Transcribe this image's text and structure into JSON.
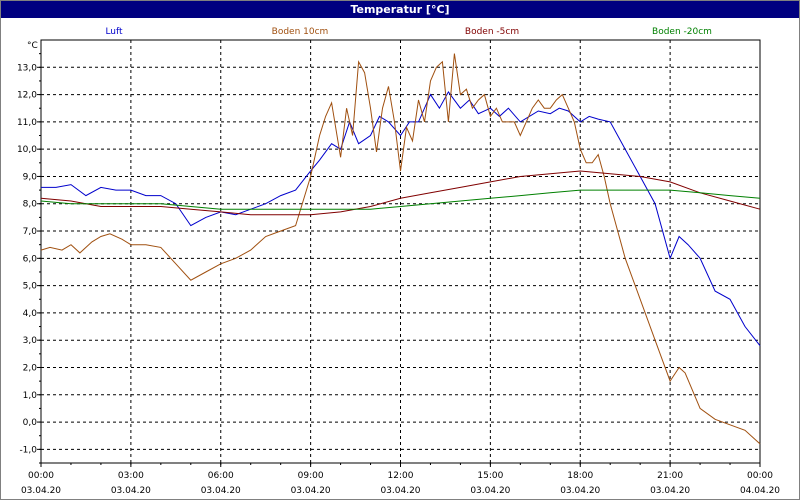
{
  "chart_data": {
    "type": "line",
    "title": "Temperatur [°C]",
    "ylabel": "°C",
    "ylim": [
      -1.5,
      14.0
    ],
    "yticks": [
      -1.0,
      0.0,
      1.0,
      2.0,
      3.0,
      4.0,
      5.0,
      6.0,
      7.0,
      8.0,
      9.0,
      10.0,
      11.0,
      12.0,
      13.0
    ],
    "ytick_labels": [
      "-1,0",
      "0,0",
      "1,0",
      "2,0",
      "3,0",
      "4,0",
      "5,0",
      "6,0",
      "7,0",
      "8,0",
      "9,0",
      "10,0",
      "11,0",
      "12,0",
      "13,0"
    ],
    "xlim": [
      0,
      24
    ],
    "xticks": [
      0,
      3,
      6,
      9,
      12,
      15,
      18,
      21,
      24
    ],
    "xtick_times": [
      "00:00",
      "03:00",
      "06:00",
      "09:00",
      "12:00",
      "15:00",
      "18:00",
      "21:00",
      "00:00"
    ],
    "xtick_dates": [
      "03.04.20",
      "03.04.20",
      "03.04.20",
      "03.04.20",
      "03.04.20",
      "03.04.20",
      "03.04.20",
      "03.04.20",
      "04.04.20"
    ],
    "grid": true,
    "legend_position": "top",
    "series": [
      {
        "name": "Luft",
        "color": "#0000cc",
        "x": [
          0,
          0.5,
          1,
          1.5,
          2,
          2.5,
          3,
          3.5,
          4,
          4.5,
          5,
          5.5,
          6,
          6.5,
          7,
          7.5,
          8,
          8.5,
          9,
          9.3,
          9.7,
          10,
          10.3,
          10.6,
          11,
          11.3,
          11.6,
          12,
          12.3,
          12.6,
          13,
          13.3,
          13.6,
          14,
          14.3,
          14.6,
          15,
          15.3,
          15.6,
          16,
          16.3,
          16.6,
          17,
          17.3,
          17.6,
          18,
          18.3,
          18.6,
          19,
          19.5,
          20,
          20.5,
          21,
          21.3,
          21.6,
          22,
          22.5,
          23,
          23.5,
          24
        ],
        "y": [
          8.6,
          8.6,
          8.7,
          8.3,
          8.6,
          8.5,
          8.5,
          8.3,
          8.3,
          8.0,
          7.2,
          7.5,
          7.7,
          7.6,
          7.8,
          8.0,
          8.3,
          8.5,
          9.2,
          9.6,
          10.2,
          10.0,
          11.0,
          10.2,
          10.5,
          11.2,
          11.0,
          10.5,
          11.0,
          11.0,
          12.0,
          11.5,
          12.1,
          11.5,
          11.8,
          11.3,
          11.5,
          11.2,
          11.5,
          11.0,
          11.2,
          11.4,
          11.3,
          11.5,
          11.4,
          11.0,
          11.2,
          11.1,
          11.0,
          10.0,
          9.0,
          8.0,
          6.0,
          6.8,
          6.5,
          6.0,
          4.8,
          4.5,
          3.5,
          2.8
        ]
      },
      {
        "name": "Boden 10cm",
        "color": "#a05010",
        "x": [
          0,
          0.3,
          0.7,
          1,
          1.3,
          1.7,
          2,
          2.3,
          2.7,
          3,
          3.5,
          4,
          4.5,
          5,
          5.5,
          6,
          6.5,
          7,
          7.5,
          8,
          8.5,
          9,
          9.3,
          9.5,
          9.7,
          10,
          10.2,
          10.4,
          10.6,
          10.8,
          11,
          11.2,
          11.4,
          11.6,
          11.8,
          12,
          12.2,
          12.4,
          12.6,
          12.8,
          13,
          13.2,
          13.4,
          13.6,
          13.8,
          14,
          14.2,
          14.4,
          14.6,
          14.8,
          15,
          15.2,
          15.4,
          15.6,
          15.8,
          16,
          16.2,
          16.4,
          16.6,
          16.8,
          17,
          17.2,
          17.4,
          17.6,
          17.8,
          18,
          18.2,
          18.4,
          18.6,
          18.8,
          19,
          19.5,
          20,
          20.5,
          21,
          21.3,
          21.5,
          22,
          22.5,
          23,
          23.5,
          24
        ],
        "y": [
          6.3,
          6.4,
          6.3,
          6.5,
          6.2,
          6.6,
          6.8,
          6.9,
          6.7,
          6.5,
          6.5,
          6.4,
          5.8,
          5.2,
          5.5,
          5.8,
          6.0,
          6.3,
          6.8,
          7.0,
          7.2,
          9.0,
          10.5,
          11.2,
          11.7,
          9.7,
          11.5,
          10.5,
          13.2,
          12.8,
          11.5,
          9.9,
          11.5,
          12.3,
          11.0,
          9.2,
          10.8,
          10.3,
          11.8,
          11.0,
          12.5,
          13.0,
          13.2,
          11.0,
          13.5,
          12.0,
          12.2,
          11.5,
          11.8,
          12.0,
          11.2,
          11.5,
          11.0,
          11.0,
          11.0,
          10.5,
          11.0,
          11.5,
          11.8,
          11.5,
          11.5,
          11.8,
          12.0,
          11.5,
          11.0,
          10.0,
          9.5,
          9.5,
          9.8,
          9.0,
          8.0,
          6.0,
          4.5,
          3.0,
          1.5,
          2.0,
          1.8,
          0.5,
          0.1,
          -0.1,
          -0.3,
          -0.8
        ]
      },
      {
        "name": "Boden -5cm",
        "color": "#800000",
        "x": [
          0,
          1,
          2,
          3,
          4,
          5,
          6,
          7,
          8,
          9,
          10,
          11,
          12,
          13,
          14,
          15,
          16,
          17,
          18,
          19,
          20,
          21,
          22,
          23,
          24
        ],
        "y": [
          8.2,
          8.1,
          7.9,
          7.9,
          7.9,
          7.8,
          7.7,
          7.6,
          7.6,
          7.6,
          7.7,
          7.9,
          8.2,
          8.4,
          8.6,
          8.8,
          9.0,
          9.1,
          9.2,
          9.1,
          9.0,
          8.8,
          8.4,
          8.1,
          7.8
        ]
      },
      {
        "name": "Boden -20cm",
        "color": "#008000",
        "x": [
          0,
          1,
          2,
          3,
          4,
          5,
          6,
          7,
          8,
          9,
          10,
          11,
          12,
          13,
          14,
          15,
          16,
          17,
          18,
          19,
          20,
          21,
          22,
          23,
          24
        ],
        "y": [
          8.1,
          8.0,
          8.0,
          8.0,
          8.0,
          7.9,
          7.8,
          7.8,
          7.8,
          7.8,
          7.8,
          7.8,
          7.9,
          8.0,
          8.1,
          8.2,
          8.3,
          8.4,
          8.5,
          8.5,
          8.5,
          8.5,
          8.4,
          8.3,
          8.2
        ]
      }
    ]
  }
}
